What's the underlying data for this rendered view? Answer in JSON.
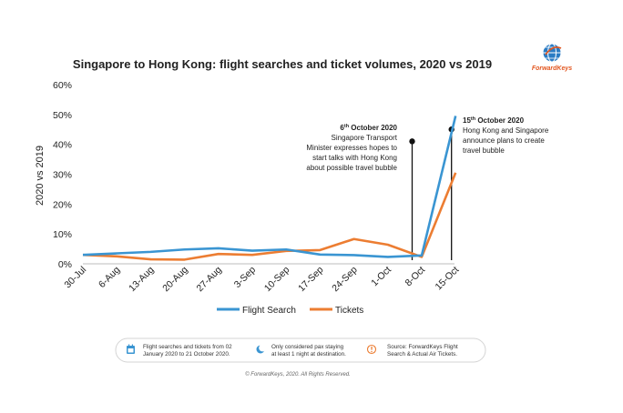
{
  "chart_data": {
    "type": "line",
    "title": "Singapore to Hong Kong: flight searches and ticket volumes, 2020 vs 2019",
    "ylabel": "2020 vs 2019",
    "xlabel": "",
    "ylim": [
      0,
      60
    ],
    "yticks": [
      "0%",
      "10%",
      "20%",
      "30%",
      "40%",
      "50%",
      "60%"
    ],
    "grid": false,
    "legend_position": "bottom",
    "categories": [
      "30-Jul",
      "6-Aug",
      "13-Aug",
      "20-Aug",
      "27-Aug",
      "3-Sep",
      "10-Sep",
      "17-Sep",
      "24-Sep",
      "1-Oct",
      "8-Oct",
      "15-Oct"
    ],
    "series": [
      {
        "name": "Flight Search",
        "color": "#3a95d2",
        "values": [
          3.0,
          3.5,
          4.0,
          4.8,
          5.2,
          4.4,
          4.8,
          3.1,
          2.9,
          2.3,
          2.8,
          49.5
        ]
      },
      {
        "name": "Tickets",
        "color": "#ec7d32",
        "values": [
          3.0,
          2.5,
          1.5,
          1.4,
          3.3,
          3.0,
          4.3,
          4.6,
          8.3,
          6.4,
          2.3,
          30.5
        ]
      }
    ],
    "annotations": [
      {
        "heading_day": "6",
        "heading_suffix": "th",
        "heading_rest": " October 2020",
        "lines": [
          "Singapore Transport",
          "Minister expresses hopes to",
          "start talks with Hong Kong",
          "about possible travel bubble"
        ],
        "value": 41
      },
      {
        "heading_day": "15",
        "heading_suffix": "th",
        "heading_rest": " October 2020",
        "lines": [
          "Hong Kong and Singapore",
          "announce plans to create",
          "travel bubble"
        ],
        "value": 45
      }
    ]
  },
  "logo": {
    "text": "ForwardKeys"
  },
  "notes": [
    {
      "icon": "calendar-icon",
      "lines": [
        "Flight searches and tickets from 02",
        "January 2020 to 21 October 2020."
      ]
    },
    {
      "icon": "moon-icon",
      "lines": [
        "Only considered pax staying",
        "at least 1 night at destination."
      ]
    },
    {
      "icon": "info-icon",
      "lines": [
        "Source: ForwardKeys Flight",
        "Search & Actual Air Tickets."
      ]
    }
  ],
  "copyright": "© ForwardKeys, 2020. All Rights Reserved.",
  "colors": {
    "accent_orange": "#e2561f",
    "globe_blue": "#2b7cc4"
  }
}
